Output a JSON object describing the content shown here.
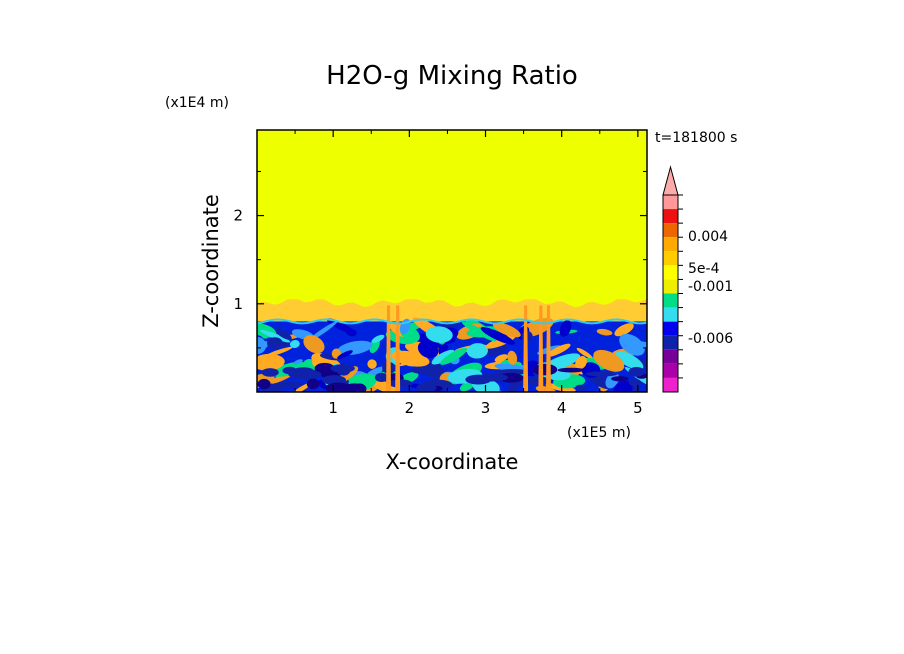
{
  "chart_data": {
    "type": "heatmap",
    "title": "H2O-g Mixing Ratio",
    "xlabel": "X-coordinate",
    "ylabel": "Z-coordinate",
    "x_unit": "(x1E5 m)",
    "y_unit": "(x1E4 m)",
    "time_label": "t=181800 s",
    "xlim": [
      0,
      5.12
    ],
    "ylim": [
      0,
      2.97
    ],
    "x_ticks": [
      1,
      2,
      3,
      4,
      5
    ],
    "y_ticks": [
      1,
      2
    ],
    "regions": [
      {
        "zmin": 1.05,
        "zmax": 2.97,
        "value": 0.0008
      },
      {
        "zmin": 0.8,
        "zmax": 1.05,
        "value": 0.0006
      },
      {
        "zmin": 0.0,
        "zmax": 0.8,
        "value": -0.002
      }
    ],
    "colorbar": {
      "levels": [
        {
          "color": "#ff9999"
        },
        {
          "color": "#ee1111"
        },
        {
          "color": "#ee6600"
        },
        {
          "color": "#ffaa00"
        },
        {
          "color": "#ffcc00"
        },
        {
          "color": "#ffff00"
        },
        {
          "color": "#eeee00"
        },
        {
          "color": "#00dd88"
        },
        {
          "color": "#33ddee"
        },
        {
          "color": "#0000ee"
        },
        {
          "color": "#1122aa"
        },
        {
          "color": "#770099"
        },
        {
          "color": "#aa00aa"
        },
        {
          "color": "#ee22cc"
        }
      ],
      "labels": [
        {
          "text": "0.004",
          "value": 0.004
        },
        {
          "text": "5e-4",
          "value": 0.0005
        },
        {
          "text": "-0.001",
          "value": -0.001
        },
        {
          "text": "-0.006",
          "value": -0.006
        }
      ],
      "extend_max": true
    },
    "colors": {
      "upper": "#eeff00",
      "mid": "#ffcc33",
      "base": "#0022dd"
    }
  }
}
